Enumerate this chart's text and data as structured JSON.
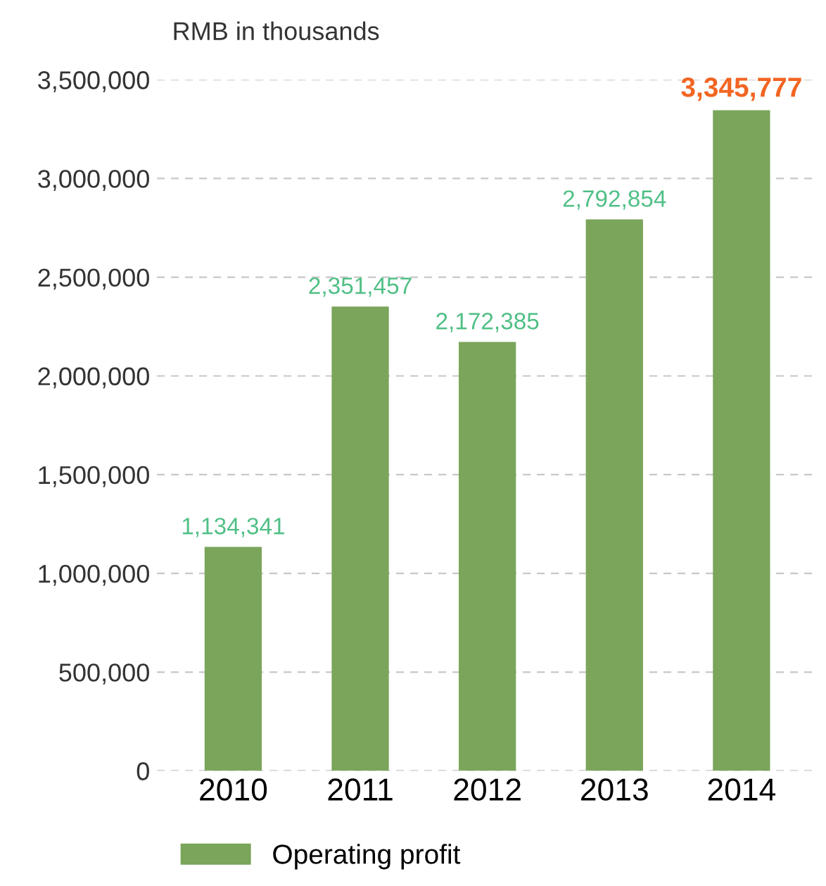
{
  "chart_data": {
    "type": "bar",
    "ylabel": "RMB in thousands",
    "categories": [
      "2010",
      "2011",
      "2012",
      "2013",
      "2014"
    ],
    "series": [
      {
        "name": "Operating profit",
        "color": "#7aa55a",
        "values": [
          1134341,
          2351457,
          2172385,
          2792854,
          3345777
        ]
      }
    ],
    "ylim": [
      0,
      3500000
    ],
    "yticks": [
      {
        "value": 0,
        "label": "0"
      },
      {
        "value": 500000,
        "label": "500,000"
      },
      {
        "value": 1000000,
        "label": "1,000,000"
      },
      {
        "value": 1500000,
        "label": "1,500,000"
      },
      {
        "value": 2000000,
        "label": "2,000,000"
      },
      {
        "value": 2500000,
        "label": "2,500,000"
      },
      {
        "value": 3000000,
        "label": "3,000,000"
      },
      {
        "value": 3500000,
        "label": "3,500,000"
      }
    ],
    "value_labels": [
      "1,134,341",
      "2,351,457",
      "2,172,385",
      "2,792,854",
      "3,345,777"
    ],
    "grid": "y",
    "legend": "bottom left"
  }
}
